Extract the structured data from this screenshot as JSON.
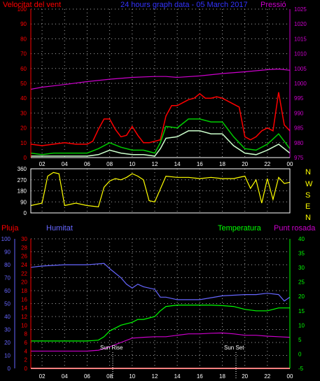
{
  "header": {
    "wind_speed_label": "Velocitat del vent",
    "date_title": "24 hours graph data - 05 March 2017",
    "pressure_label": "Pressió"
  },
  "colors": {
    "wind_gust": "#ff0000",
    "wind_avg": "#00cc00",
    "wind_low": "#ccffcc",
    "pressure": "#cc00cc",
    "direction": "#ffff00",
    "humidity": "#6666ff",
    "temperature": "#00ff00",
    "dewpoint": "#cc00cc",
    "rain": "#ff0000",
    "left_axis": "#ff0000",
    "grid": "#aaaaaa"
  },
  "lower_header": {
    "rain_label": "Pluja",
    "humidity_label": "Humitat",
    "temperature_label": "Temperatura",
    "dewpoint_label": "Punt rosada"
  },
  "annotations": {
    "sunrise": "Sun Rise",
    "sunset": "Sun Set"
  },
  "compass": [
    "N",
    "W",
    "S",
    "E",
    "N"
  ],
  "chart_data": [
    {
      "type": "line",
      "title": "24 hours graph data - 05 March 2017",
      "x_ticks": [
        "02",
        "04",
        "06",
        "08",
        "10",
        "12",
        "14",
        "16",
        "18",
        "20",
        "22",
        "00"
      ],
      "x_range_hours": [
        1,
        24
      ],
      "left_axis": {
        "label": "Velocitat del vent",
        "ylim": [
          0,
          100
        ],
        "ticks": [
          0,
          10,
          20,
          30,
          40,
          50,
          60,
          70,
          80,
          90,
          100
        ]
      },
      "right_axis": {
        "label": "Pressió",
        "ylim": [
          975,
          1025
        ],
        "ticks": [
          975,
          980,
          985,
          990,
          995,
          1000,
          1005,
          1010,
          1015,
          1020,
          1025
        ]
      },
      "series": [
        {
          "name": "Pressió",
          "axis": "right",
          "x": [
            1,
            2,
            4,
            6,
            8,
            10,
            12,
            13,
            14,
            16,
            18,
            20,
            22,
            23,
            24
          ],
          "y": [
            998,
            998.7,
            999.6,
            1000.6,
            1001.4,
            1002.0,
            1002.3,
            1002.3,
            1002.0,
            1002.5,
            1003.3,
            1003.9,
            1004.6,
            1004.8,
            1004.4
          ]
        },
        {
          "axis": "left",
          "x": [
            1,
            2,
            3,
            4,
            5,
            6,
            6.5,
            7,
            7.5,
            8,
            8.5,
            9,
            9.5,
            10,
            10.5,
            11,
            11.5,
            12,
            12.5,
            13,
            13.5,
            14,
            14.5,
            15,
            15.5,
            16,
            16.5,
            17,
            17.5,
            18,
            18.5,
            19,
            19.5,
            20,
            20.5,
            21,
            21.5,
            22,
            22.5,
            23,
            23.5,
            24
          ],
          "y": [
            9,
            8,
            9,
            10,
            9,
            9,
            11,
            19,
            26,
            26,
            19,
            14,
            15,
            21,
            15,
            10,
            10,
            11,
            12,
            28,
            35,
            35,
            37,
            39,
            40,
            43,
            40,
            40,
            41,
            40,
            38,
            36,
            34,
            14,
            12,
            14,
            18,
            20,
            18,
            44,
            22,
            18
          ]
        },
        {
          "axis": "left",
          "x": [
            1,
            2,
            3,
            4,
            5,
            6,
            7,
            8,
            9,
            10,
            11,
            12,
            12.5,
            13,
            14,
            15,
            16,
            17,
            18,
            19,
            20,
            21,
            22,
            23,
            24
          ],
          "y": [
            3,
            2,
            3,
            3,
            3,
            3,
            6,
            10,
            7,
            5,
            5,
            3,
            10,
            21,
            20,
            26,
            26,
            24,
            24,
            14,
            6,
            5,
            9,
            16,
            6
          ]
        },
        {
          "axis": "left",
          "x": [
            1,
            2,
            3,
            4,
            5,
            6,
            7,
            8,
            9,
            10,
            11,
            12,
            12.5,
            13,
            14,
            15,
            16,
            17,
            18,
            19,
            20,
            21,
            22,
            23,
            24
          ],
          "y": [
            1,
            1,
            1,
            1,
            1,
            1,
            2,
            5,
            3,
            2,
            2,
            1,
            6,
            13,
            14,
            18,
            18,
            16,
            16,
            8,
            3,
            2,
            5,
            9,
            3
          ]
        }
      ]
    },
    {
      "type": "line",
      "x_ticks": [
        "02",
        "04",
        "06",
        "08",
        "10",
        "12",
        "14",
        "16",
        "18",
        "20",
        "22",
        "00"
      ],
      "x_range_hours": [
        1,
        24
      ],
      "left_axis": {
        "ylim": [
          0,
          360
        ],
        "ticks": [
          0,
          90,
          180,
          270,
          360
        ]
      },
      "series": [
        {
          "axis": "left",
          "x": [
            1,
            2,
            2.5,
            3,
            3.5,
            4,
            5,
            6,
            7,
            7.5,
            8,
            8.5,
            9,
            9.5,
            10,
            10.5,
            11,
            11.5,
            12,
            13,
            14,
            15,
            16,
            17,
            18,
            19,
            20,
            20.5,
            21,
            21.5,
            22,
            22.5,
            23,
            23.5,
            24
          ],
          "y": [
            60,
            80,
            300,
            330,
            320,
            60,
            80,
            60,
            50,
            210,
            260,
            280,
            270,
            290,
            320,
            300,
            270,
            100,
            90,
            300,
            290,
            290,
            280,
            290,
            280,
            280,
            300,
            200,
            270,
            80,
            280,
            110,
            290,
            240,
            250
          ]
        }
      ]
    },
    {
      "type": "line",
      "x_ticks": [
        "02",
        "04",
        "06",
        "08",
        "10",
        "12",
        "14",
        "16",
        "18",
        "20",
        "22",
        "00"
      ],
      "x_range_hours": [
        1,
        24
      ],
      "axes": [
        {
          "label": "Humitat",
          "ylim": [
            0,
            100
          ],
          "ticks": [
            0,
            10,
            20,
            30,
            40,
            50,
            60,
            70,
            80,
            90,
            100
          ]
        },
        {
          "label": "Pluja",
          "ylim": [
            0,
            30
          ],
          "ticks": [
            0,
            2,
            4,
            6,
            8,
            10,
            12,
            14,
            16,
            18,
            20,
            22,
            24,
            26,
            28,
            30
          ]
        },
        {
          "label": "Temperatura",
          "ylim": [
            -5,
            40
          ],
          "ticks": [
            -5,
            0,
            5,
            10,
            15,
            20,
            25,
            30,
            35,
            40
          ]
        }
      ],
      "series": [
        {
          "name": "Humitat",
          "axis": "Humitat",
          "x": [
            1,
            2,
            4,
            6,
            7.5,
            8,
            9,
            9.5,
            10,
            10.5,
            11,
            12,
            12.5,
            13,
            14,
            16,
            18,
            20,
            21,
            22,
            23,
            23.5,
            24
          ],
          "y": [
            78,
            79,
            80,
            80,
            81,
            77,
            70,
            65,
            62,
            65,
            63,
            61,
            55,
            55,
            53,
            53,
            56,
            57,
            57,
            58,
            57,
            52,
            55
          ]
        },
        {
          "name": "Temperatura",
          "axis": "Temperatura",
          "x": [
            1,
            2,
            4,
            6,
            7,
            7.5,
            8,
            9,
            10,
            10.5,
            11,
            12,
            12.5,
            13,
            14,
            15,
            16,
            17,
            18,
            19,
            20,
            21,
            22,
            23,
            24
          ],
          "y": [
            4.5,
            4.5,
            4.5,
            4.5,
            4.8,
            6,
            8,
            10,
            11,
            12,
            12,
            13,
            15,
            16.5,
            17,
            17,
            17,
            17,
            16.8,
            16.5,
            15.5,
            15,
            15,
            16,
            16
          ]
        },
        {
          "name": "Punt rosada",
          "axis": "Temperatura",
          "x": [
            1,
            2,
            4,
            6,
            7,
            8,
            9,
            10,
            11,
            12,
            13,
            14,
            15,
            16,
            17,
            18,
            19,
            20,
            21,
            22,
            23,
            24
          ],
          "y": [
            1,
            1,
            1,
            1,
            1.3,
            2.5,
            4,
            5.5,
            5.8,
            6,
            6,
            6.5,
            7,
            7,
            7.2,
            7.3,
            7,
            6.5,
            6.5,
            6.2,
            6,
            5.8
          ]
        },
        {
          "name": "Pluja",
          "axis": "Pluja",
          "x": [
            1,
            24
          ],
          "y": [
            0,
            0
          ]
        }
      ]
    }
  ]
}
